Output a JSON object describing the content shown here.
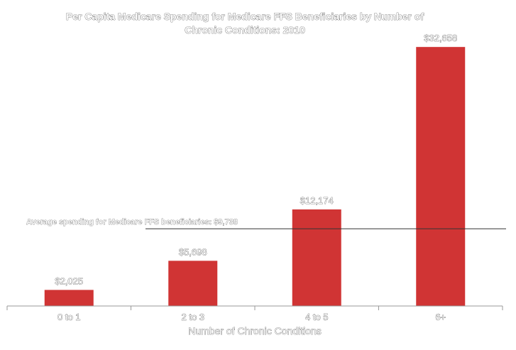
{
  "chart_data": {
    "type": "bar",
    "title_lines": [
      "Per Capita Medicare Spending for Medicare FFS Beneficiaries by Number of",
      "Chronic Conditions: 2010"
    ],
    "xlabel": "Number of Chronic Conditions",
    "ylabel": "",
    "categories": [
      "0 to 1",
      "2 to 3",
      "4 to 5",
      "6+"
    ],
    "values": [
      2025,
      5698,
      12174,
      32658
    ],
    "data_labels": [
      "$2,025",
      "$5,698",
      "$12,174",
      "$32,658"
    ],
    "ylim": [
      0,
      35000
    ],
    "bar_color": "#d03434",
    "reference_line": {
      "value": 9738,
      "label": "Average spending for Medicare FFS beneficiaries: $9,738"
    },
    "grid": false,
    "legend": "none"
  }
}
